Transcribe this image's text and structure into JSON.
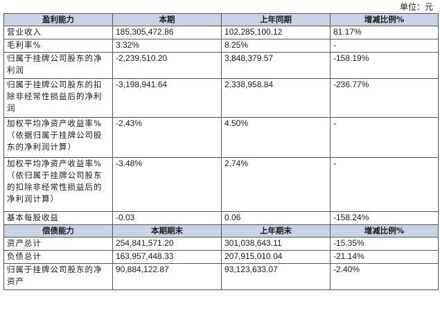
{
  "unit_label": "单位：元",
  "profitability": {
    "headers": [
      "盈利能力",
      "本期",
      "上年同期",
      "增减比例%"
    ],
    "rows": [
      {
        "label": "营业收入",
        "current": "185,305,472.86",
        "prior": "102,285,100.12",
        "change": "81.17%"
      },
      {
        "label": "毛利率%",
        "current": "3.32%",
        "prior": "8.25%",
        "change": "-"
      },
      {
        "label": "归属于挂牌公司股东的净利润",
        "current": "-2,239,510.20",
        "prior": "3,848,379.57",
        "change": "-158.19%"
      },
      {
        "label": "归属于挂牌公司股东的扣除非经常性损益后的净利润",
        "current": "-3,198,941.64",
        "prior": "2,338,958.84",
        "change": "-236.77%"
      },
      {
        "label": "加权平均净资产收益率%（依据归属于挂牌公司股东的净利润计算）",
        "current": "-2.43%",
        "prior": "4.50%",
        "change": "-"
      },
      {
        "label": "加权平均净资产收益率%（依归属于挂牌公司股东的扣除非经常性损益后的净利润计算）",
        "current": "-3.48%",
        "prior": "2.74%",
        "change": "-"
      },
      {
        "label": "基本每股收益",
        "current": "-0.03",
        "prior": "0.06",
        "change": "-158.24%"
      }
    ]
  },
  "solvency": {
    "headers": [
      "偿债能力",
      "本期期末",
      "上年期末",
      "增减比例%"
    ],
    "rows": [
      {
        "label": "资产总计",
        "current": "254,841,571.20",
        "prior": "301,038,643.11",
        "change": "-15.35%"
      },
      {
        "label": "负债总计",
        "current": "163,957,448.33",
        "prior": "207,915,010.04",
        "change": "-21.14%"
      },
      {
        "label": "归属于挂牌公司股东的净资产",
        "current": "90,884,122.87",
        "prior": "93,123,633.07",
        "change": "-2.40%"
      }
    ]
  }
}
